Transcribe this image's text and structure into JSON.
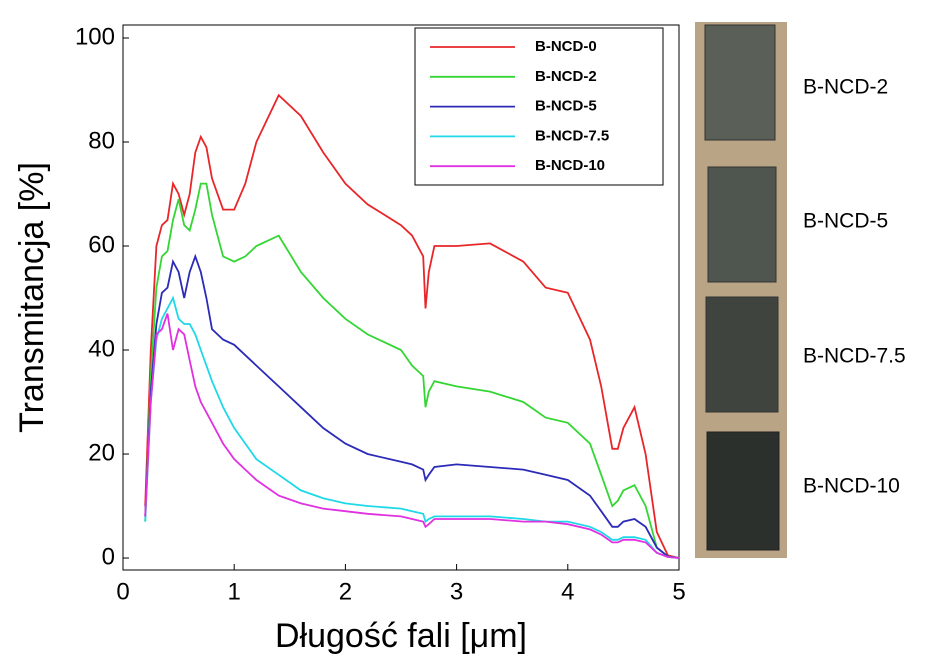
{
  "chart_data": {
    "type": "line",
    "x_label": "Długość fali [μm]",
    "y_label": "Transmitancja [%]",
    "x": [
      0.2,
      0.25,
      0.3,
      0.35,
      0.4,
      0.45,
      0.5,
      0.55,
      0.6,
      0.65,
      0.7,
      0.75,
      0.8,
      0.9,
      1.0,
      1.1,
      1.2,
      1.4,
      1.6,
      1.8,
      2.0,
      2.2,
      2.5,
      2.6,
      2.7,
      2.72,
      2.75,
      2.8,
      3.0,
      3.3,
      3.6,
      3.8,
      4.0,
      4.2,
      4.3,
      4.4,
      4.45,
      4.5,
      4.6,
      4.7,
      4.8,
      4.9,
      5.0
    ],
    "series": [
      {
        "name": "B-NCD-0",
        "color": "#e8262a",
        "values": [
          10,
          40,
          60,
          64,
          65,
          72,
          70,
          66,
          70,
          78,
          81,
          79,
          73,
          67,
          67,
          72,
          80,
          89,
          85,
          78,
          72,
          68,
          64,
          62,
          58,
          48,
          55,
          60,
          60,
          60.5,
          57,
          52,
          51,
          42,
          33,
          21,
          21,
          25,
          29,
          20,
          5,
          0.5,
          0
        ]
      },
      {
        "name": "B-NCD-2",
        "color": "#33d633",
        "values": [
          7,
          35,
          52,
          58,
          59,
          65,
          69,
          64,
          63,
          67,
          72,
          72,
          66,
          58,
          57,
          58,
          60,
          62,
          55,
          50,
          46,
          43,
          40,
          37,
          35,
          29,
          32,
          34,
          33,
          32,
          30,
          27,
          26,
          22,
          16,
          10,
          11,
          13,
          14,
          10,
          2,
          0.3,
          0
        ]
      },
      {
        "name": "B-NCD-5",
        "color": "#2b2bb8",
        "values": [
          8,
          32,
          45,
          51,
          52,
          57,
          55,
          50,
          55,
          58,
          55,
          50,
          44,
          42,
          41,
          39,
          37,
          33,
          29,
          25,
          22,
          20,
          18.5,
          18,
          17,
          15,
          16,
          17.5,
          18,
          17.5,
          17,
          16,
          15,
          12,
          9,
          6,
          6,
          7,
          7.5,
          6,
          2,
          0.3,
          0
        ]
      },
      {
        "name": "B-NCD-7.5",
        "color": "#1fd8e8",
        "values": [
          7,
          30,
          42,
          46,
          48,
          50,
          46,
          45,
          45,
          43,
          40,
          37,
          34,
          29,
          25,
          22,
          19,
          16,
          13,
          11.5,
          10.5,
          10,
          9.5,
          9,
          8.5,
          7,
          7.5,
          8,
          8,
          8,
          7.5,
          7,
          7,
          6,
          5,
          3.5,
          3.5,
          4,
          4,
          3.5,
          1,
          0.2,
          0
        ]
      },
      {
        "name": "B-NCD-10",
        "color": "#e030e0",
        "values": [
          8,
          30,
          43,
          44,
          47,
          40,
          44,
          43,
          38,
          33,
          30,
          28,
          26,
          22,
          19,
          17,
          15,
          12,
          10.5,
          9.5,
          9,
          8.5,
          8,
          7.5,
          7,
          6,
          6.5,
          7.5,
          7.5,
          7.5,
          7,
          7,
          6.5,
          5.5,
          4.5,
          3,
          3,
          3.5,
          3.5,
          3,
          1,
          0.2,
          0
        ]
      }
    ],
    "xlim": [
      0,
      5
    ],
    "xticks": [
      0,
      1,
      2,
      3,
      4,
      5
    ],
    "ylim": [
      -2.3,
      102.5
    ],
    "yticks": [
      0,
      20,
      40,
      60,
      80,
      100
    ],
    "legend": "upper right"
  },
  "photo": {
    "labels": [
      "B-NCD-2",
      "B-NCD-5",
      "B-NCD-7.5",
      "B-NCD-10"
    ]
  }
}
